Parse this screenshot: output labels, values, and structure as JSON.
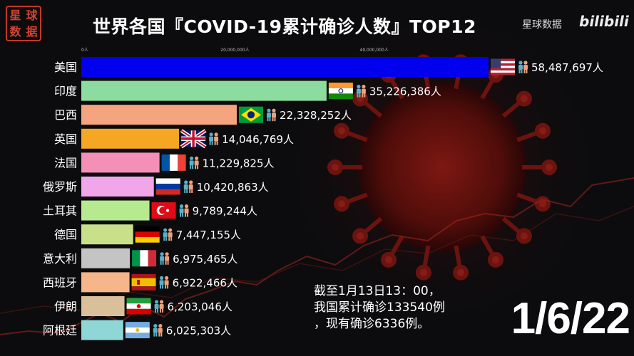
{
  "header": {
    "title": "世界各国『COVID-19累计确诊人数』TOP12",
    "seal_chars": [
      "星",
      "球",
      "数",
      "据"
    ],
    "brand_text": "星球数据",
    "brand_logo": "bilibili"
  },
  "note": {
    "line1": "截至1月13日13：00，",
    "line2": "我国累计确诊133540例",
    "line3": "，现有确诊6336例。"
  },
  "date_label": "1/6/22",
  "colors": {
    "美国": "#0000ee",
    "印度": "#8ddc9f",
    "巴西": "#f4a57f",
    "英国": "#f5a623",
    "法国": "#f48fb8",
    "俄罗斯": "#f0a6e8",
    "土耳其": "#b7ea8f",
    "德国": "#c9e08a",
    "意大利": "#c4c4c4",
    "西班牙": "#f7b58a",
    "伊朗": "#d9c09a",
    "阿根廷": "#8fd6d6"
  },
  "chart_data": {
    "type": "bar",
    "orientation": "horizontal",
    "title": "世界各国『COVID-19累计确诊人数』TOP12",
    "categories": [
      "美国",
      "印度",
      "巴西",
      "英国",
      "法国",
      "俄罗斯",
      "土耳其",
      "德国",
      "意大利",
      "西班牙",
      "伊朗",
      "阿根廷"
    ],
    "values": [
      58487697,
      35226386,
      22328252,
      14046769,
      11229825,
      10420863,
      9789244,
      7447155,
      6975465,
      6922466,
      6203046,
      6025303
    ],
    "value_labels": [
      "58,487,697人",
      "35,226,386人",
      "22,328,252人",
      "14,046,769人",
      "11,229,825人",
      "10,420,863人",
      "9,789,244人",
      "7,447,155人",
      "6,975,465人",
      "6,922,466人",
      "6,203,046人",
      "6,025,303人"
    ],
    "x_ticks": [
      0,
      20000000,
      40000000
    ],
    "x_tick_labels": [
      "0人",
      "20,000,000人",
      "40,000,000人"
    ],
    "xlim": [
      0,
      58487697
    ],
    "flags": [
      "us",
      "in",
      "br",
      "gb",
      "fr",
      "ru",
      "tr",
      "de",
      "it",
      "es",
      "ir",
      "ar"
    ],
    "legend": "none",
    "grid": false
  }
}
